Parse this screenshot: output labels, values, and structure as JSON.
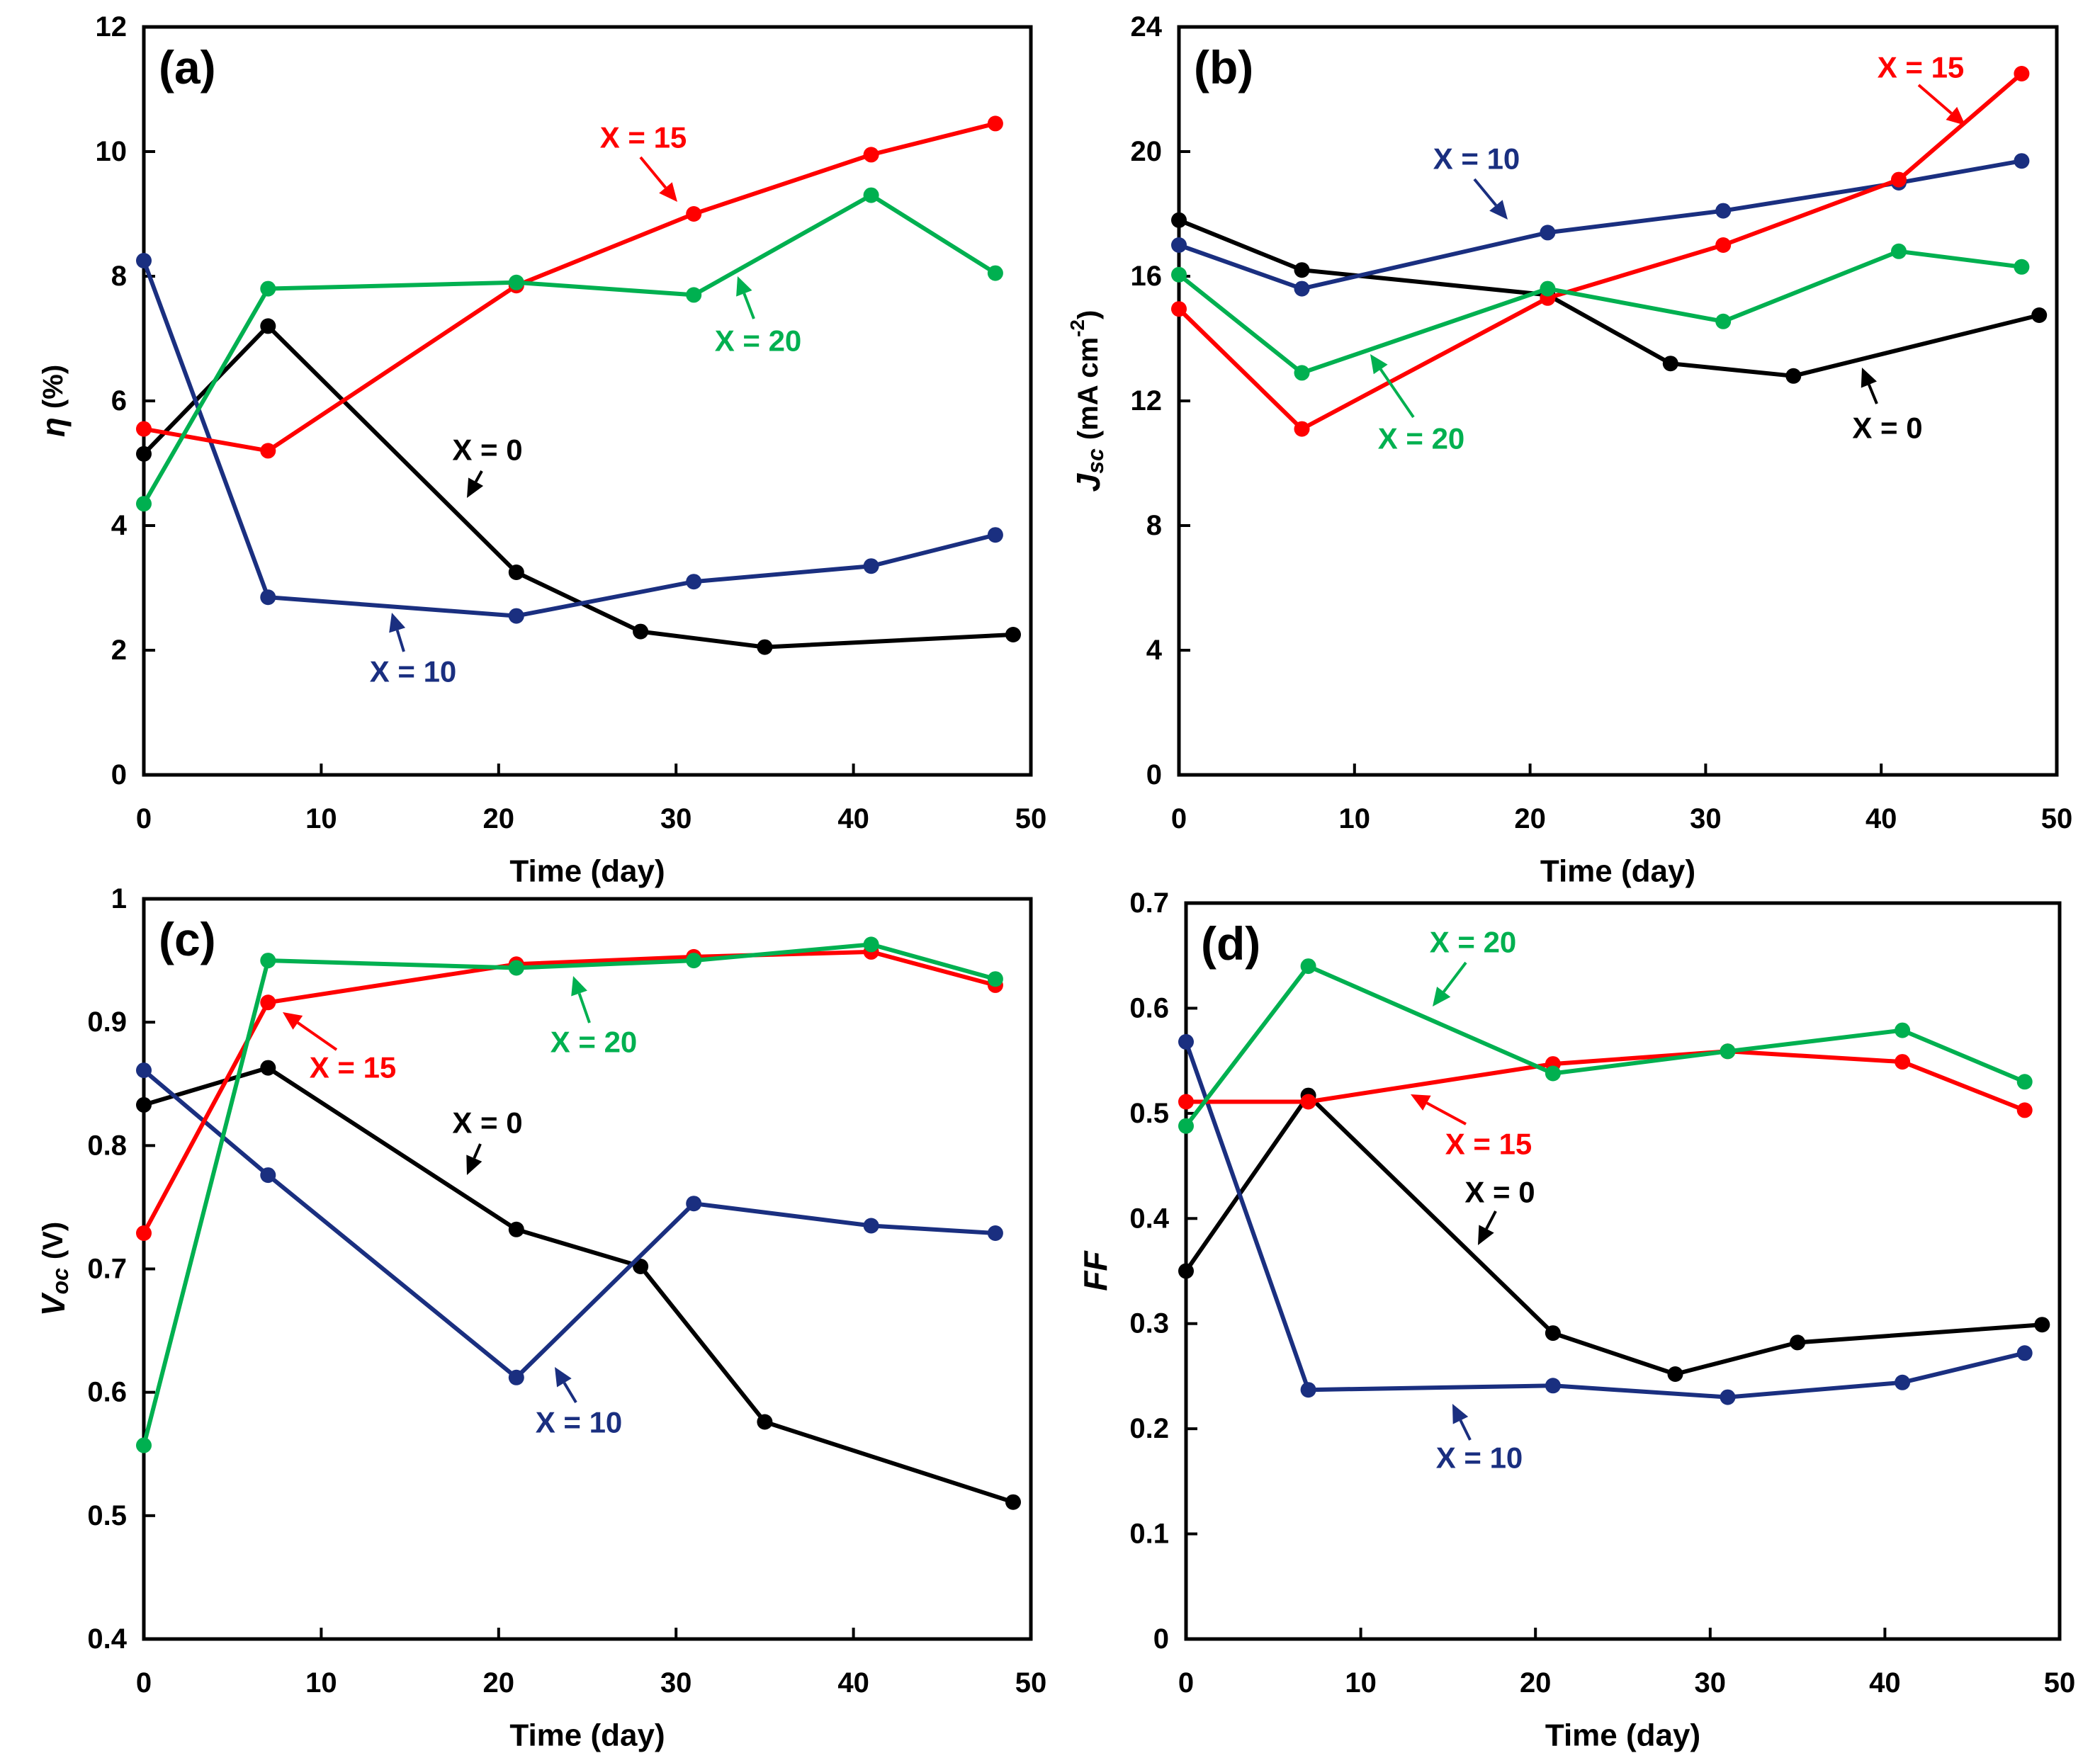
{
  "chart_data": [
    {
      "type": "line",
      "title": "(a)",
      "xlabel": "Time (day)",
      "ylabel": {
        "symbol": "η",
        "unit": "(%)"
      },
      "xlim": [
        0,
        50
      ],
      "ylim": [
        0,
        12
      ],
      "xticks": [
        0,
        10,
        20,
        30,
        40,
        50
      ],
      "yticks": [
        0,
        2,
        4,
        6,
        8,
        10,
        12
      ],
      "series": [
        {
          "name": "X = 0",
          "color": "#000000",
          "x": [
            0,
            7,
            21,
            28,
            35,
            49
          ],
          "values": [
            5.15,
            7.2,
            3.25,
            2.3,
            2.05,
            2.25
          ]
        },
        {
          "name": "X = 10",
          "color": "#1a2f80",
          "x": [
            0,
            7,
            21,
            31,
            41,
            48
          ],
          "values": [
            8.25,
            2.85,
            2.55,
            3.1,
            3.35,
            3.85
          ]
        },
        {
          "name": "X = 15",
          "color": "#ff0000",
          "x": [
            0,
            7,
            21,
            31,
            41,
            48
          ],
          "values": [
            5.55,
            5.2,
            7.85,
            9.0,
            9.95,
            10.45
          ]
        },
        {
          "name": "X = 20",
          "color": "#00b050",
          "x": [
            0,
            7,
            21,
            31,
            41,
            48
          ],
          "values": [
            4.35,
            7.8,
            7.9,
            7.7,
            9.3,
            8.05
          ]
        }
      ]
    },
    {
      "type": "line",
      "title": "(b)",
      "xlabel": "Time (day)",
      "ylabel": {
        "symbol": "J",
        "sub": "sc",
        "unit": "(mA cm",
        "sup": "-2",
        "end": ")"
      },
      "xlim": [
        0,
        50
      ],
      "ylim": [
        0,
        24
      ],
      "xticks": [
        0,
        10,
        20,
        30,
        40,
        50
      ],
      "yticks": [
        0,
        4,
        8,
        12,
        16,
        20,
        24
      ],
      "series": [
        {
          "name": "X = 0",
          "color": "#000000",
          "x": [
            0,
            7,
            21,
            28,
            35,
            49
          ],
          "values": [
            17.8,
            16.2,
            15.4,
            13.2,
            12.8,
            14.75
          ]
        },
        {
          "name": "X = 10",
          "color": "#1a2f80",
          "x": [
            0,
            7,
            21,
            31,
            41,
            48
          ],
          "values": [
            17.0,
            15.6,
            17.4,
            18.1,
            19.0,
            19.7
          ]
        },
        {
          "name": "X = 15",
          "color": "#ff0000",
          "x": [
            0,
            7,
            21,
            31,
            41,
            48
          ],
          "values": [
            14.95,
            11.1,
            15.3,
            17.0,
            19.1,
            22.5
          ]
        },
        {
          "name": "X = 20",
          "color": "#00b050",
          "x": [
            0,
            7,
            21,
            31,
            41,
            48
          ],
          "values": [
            16.05,
            12.9,
            15.6,
            14.55,
            16.8,
            16.3
          ]
        }
      ]
    },
    {
      "type": "line",
      "title": "(c)",
      "xlabel": "Time (day)",
      "ylabel": {
        "symbol": "V",
        "sub": "oc",
        "unit": "(V)"
      },
      "xlim": [
        0,
        50
      ],
      "ylim": [
        0.4,
        1
      ],
      "xticks": [
        0,
        10,
        20,
        30,
        40,
        50
      ],
      "yticks": [
        0.4,
        0.5,
        0.6,
        0.7,
        0.8,
        0.9,
        1
      ],
      "series": [
        {
          "name": "X = 0",
          "color": "#000000",
          "x": [
            0,
            7,
            21,
            28,
            35,
            49
          ],
          "values": [
            0.833,
            0.863,
            0.732,
            0.702,
            0.576,
            0.511
          ]
        },
        {
          "name": "X = 10",
          "color": "#1a2f80",
          "x": [
            0,
            7,
            21,
            31,
            41,
            48
          ],
          "values": [
            0.861,
            0.776,
            0.612,
            0.753,
            0.735,
            0.729
          ]
        },
        {
          "name": "X = 15",
          "color": "#ff0000",
          "x": [
            0,
            7,
            21,
            31,
            41,
            48
          ],
          "values": [
            0.729,
            0.916,
            0.947,
            0.953,
            0.957,
            0.93
          ]
        },
        {
          "name": "X = 20",
          "color": "#00b050",
          "x": [
            0,
            7,
            21,
            31,
            41,
            48
          ],
          "values": [
            0.557,
            0.95,
            0.944,
            0.95,
            0.963,
            0.935
          ]
        }
      ]
    },
    {
      "type": "line",
      "title": "(d)",
      "xlabel": "Time (day)",
      "ylabel": {
        "symbol": "FF"
      },
      "xlim": [
        0,
        50
      ],
      "ylim": [
        0,
        0.7
      ],
      "xticks": [
        0,
        10,
        20,
        30,
        40,
        50
      ],
      "yticks": [
        0,
        0.1,
        0.2,
        0.3,
        0.4,
        0.5,
        0.6,
        0.7
      ],
      "series": [
        {
          "name": "X = 0",
          "color": "#000000",
          "x": [
            0,
            7,
            21,
            28,
            35,
            49
          ],
          "values": [
            0.35,
            0.517,
            0.291,
            0.252,
            0.282,
            0.299
          ]
        },
        {
          "name": "X = 10",
          "color": "#1a2f80",
          "x": [
            0,
            7,
            21,
            31,
            41,
            48
          ],
          "values": [
            0.568,
            0.237,
            0.241,
            0.23,
            0.244,
            0.272
          ]
        },
        {
          "name": "X = 15",
          "color": "#ff0000",
          "x": [
            0,
            7,
            21,
            31,
            41,
            48
          ],
          "values": [
            0.511,
            0.511,
            0.547,
            0.559,
            0.549,
            0.503
          ]
        },
        {
          "name": "X = 20",
          "color": "#00b050",
          "x": [
            0,
            7,
            21,
            31,
            41,
            48
          ],
          "values": [
            0.488,
            0.64,
            0.538,
            0.559,
            0.579,
            0.53
          ]
        }
      ]
    }
  ]
}
